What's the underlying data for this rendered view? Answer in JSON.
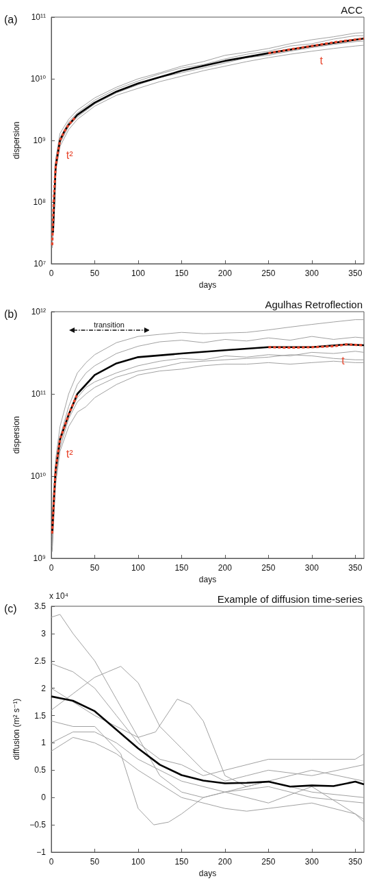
{
  "chart_data": [
    {
      "type": "line",
      "title": "ACC",
      "xlabel": "days",
      "ylabel": "dispersion",
      "log": "y",
      "grid": false,
      "marker": "none",
      "xlim": [
        0,
        360
      ],
      "xticks": [
        0,
        50,
        100,
        150,
        200,
        250,
        300,
        350
      ],
      "ylim": [
        10000000.0,
        100000000000.0
      ],
      "yticks": [
        {
          "value": 10000000.0,
          "label": "10⁷"
        },
        {
          "value": 100000000.0,
          "label": "10⁸"
        },
        {
          "value": 1000000000.0,
          "label": "10⁹"
        },
        {
          "value": 10000000000.0,
          "label": "10¹⁰"
        },
        {
          "value": 100000000000.0,
          "label": "10¹¹"
        }
      ],
      "annotations": [
        "(a)"
      ],
      "series": [
        {
          "color": "#a0a0a0",
          "x": [
            1,
            5,
            10,
            20,
            30,
            50,
            75,
            100,
            125,
            150,
            175,
            200,
            225,
            250,
            275,
            300,
            325,
            350,
            360
          ],
          "values": [
            25000000.0,
            500000000.0,
            1300000000.0,
            2200000000.0,
            3100000000.0,
            4900000000.0,
            7300000000.0,
            10000000000.0,
            12500000000.0,
            16000000000.0,
            19000000000.0,
            24000000000.0,
            27000000000.0,
            31000000000.0,
            37000000000.0,
            43000000000.0,
            48000000000.0,
            55000000000.0,
            56000000000.0
          ]
        },
        {
          "color": "#a0a0a0",
          "x": [
            1,
            5,
            10,
            20,
            30,
            50,
            75,
            100,
            125,
            150,
            175,
            200,
            225,
            250,
            275,
            300,
            325,
            350,
            360
          ],
          "values": [
            18000000.0,
            300000000.0,
            800000000.0,
            1500000000.0,
            2200000000.0,
            3600000000.0,
            5400000000.0,
            7000000000.0,
            9000000000.0,
            11000000000.0,
            13500000000.0,
            16000000000.0,
            19000000000.0,
            22000000000.0,
            25000000000.0,
            28000000000.0,
            31000000000.0,
            34000000000.0,
            35000000000.0
          ]
        },
        {
          "color": "#a0a0a0",
          "x": [
            1,
            5,
            10,
            20,
            30,
            50,
            75,
            100,
            125,
            150,
            175,
            200,
            225,
            250,
            275,
            300,
            325,
            350,
            360
          ],
          "values": [
            22000000.0,
            420000000.0,
            1100000000.0,
            2000000000.0,
            2800000000.0,
            4500000000.0,
            6800000000.0,
            9200000000.0,
            12000000000.0,
            15000000000.0,
            17000000000.0,
            21000000000.0,
            25000000000.0,
            28000000000.0,
            34000000000.0,
            37000000000.0,
            44000000000.0,
            50000000000.0,
            50000000000.0
          ]
        },
        {
          "color": "#a0a0a0",
          "x": [
            1,
            5,
            10,
            20,
            30,
            50,
            75,
            100,
            125,
            150,
            175,
            200,
            225,
            250,
            275,
            300,
            325,
            350,
            360
          ],
          "values": [
            20000000.0,
            350000000.0,
            900000000.0,
            1700000000.0,
            2400000000.0,
            3900000000.0,
            5900000000.0,
            8000000000.0,
            10500000000.0,
            12500000000.0,
            15000000000.0,
            18000000000.0,
            22000000000.0,
            24000000000.0,
            28000000000.0,
            32000000000.0,
            36000000000.0,
            40000000000.0,
            41000000000.0
          ]
        },
        {
          "color": "#000000",
          "x": [
            2,
            5,
            10,
            15,
            20,
            30,
            50,
            75,
            100,
            150,
            200,
            250,
            300,
            360
          ],
          "values": [
            32000000.0,
            380000000.0,
            1000000000.0,
            1400000000.0,
            1800000000.0,
            2600000000.0,
            4100000000.0,
            6200000000.0,
            8400000000.0,
            13500000000.0,
            19500000000.0,
            26000000000.0,
            34000000000.0,
            45000000000.0
          ]
        },
        {
          "name": "t²",
          "color": "#e8452c",
          "line_style": "dashed",
          "x": [
            1,
            3,
            5,
            10,
            15,
            20,
            28
          ],
          "values": [
            20000000.0,
            120000000.0,
            380000000.0,
            1000000000.0,
            1400000000.0,
            1800000000.0,
            2400000000.0
          ]
        },
        {
          "name": "t",
          "color": "#e8452c",
          "line_style": "dashed",
          "x": [
            250,
            275,
            300,
            325,
            360
          ],
          "values": [
            26000000000.0,
            30000000000.0,
            34000000000.0,
            39000000000.0,
            45000000000.0
          ]
        }
      ]
    },
    {
      "type": "line",
      "title": "Agulhas Retroflection",
      "xlabel": "days",
      "ylabel": "dispersion",
      "log": "y",
      "grid": false,
      "marker": "none",
      "xlim": [
        0,
        360
      ],
      "xticks": [
        0,
        50,
        100,
        150,
        200,
        250,
        300,
        350
      ],
      "ylim": [
        1000000000.0,
        1000000000000.0
      ],
      "yticks": [
        {
          "value": 1000000000.0,
          "label": "10⁹"
        },
        {
          "value": 10000000000.0,
          "label": "10¹⁰"
        },
        {
          "value": 100000000000.0,
          "label": "10¹¹"
        },
        {
          "value": 1000000000000.0,
          "label": "10¹²"
        }
      ],
      "annotations": [
        "(b)",
        "transition"
      ],
      "series": [
        {
          "color": "#a0a0a0",
          "x": [
            1,
            5,
            10,
            20,
            30,
            40,
            50,
            75,
            100,
            125,
            150,
            175,
            200,
            225,
            250,
            275,
            300,
            325,
            350,
            360
          ],
          "values": [
            1500000000.0,
            16000000000.0,
            40000000000.0,
            100000000000.0,
            180000000000.0,
            240000000000.0,
            300000000000.0,
            420000000000.0,
            500000000000.0,
            530000000000.0,
            560000000000.0,
            540000000000.0,
            550000000000.0,
            560000000000.0,
            600000000000.0,
            650000000000.0,
            700000000000.0,
            750000000000.0,
            800000000000.0,
            800000000000.0
          ]
        },
        {
          "color": "#a0a0a0",
          "x": [
            1,
            5,
            10,
            20,
            30,
            40,
            50,
            75,
            100,
            125,
            150,
            175,
            200,
            225,
            250,
            275,
            300,
            325,
            350,
            360
          ],
          "values": [
            1200000000.0,
            8000000000.0,
            20000000000.0,
            40000000000.0,
            60000000000.0,
            70000000000.0,
            90000000000.0,
            130000000000.0,
            170000000000.0,
            190000000000.0,
            200000000000.0,
            220000000000.0,
            230000000000.0,
            230000000000.0,
            240000000000.0,
            230000000000.0,
            240000000000.0,
            250000000000.0,
            240000000000.0,
            240000000000.0
          ]
        },
        {
          "color": "#a0a0a0",
          "x": [
            1,
            5,
            10,
            20,
            30,
            40,
            50,
            75,
            100,
            125,
            150,
            175,
            200,
            225,
            250,
            275,
            300,
            325,
            350,
            360
          ],
          "values": [
            1800000000.0,
            12000000000.0,
            30000000000.0,
            70000000000.0,
            130000000000.0,
            180000000000.0,
            220000000000.0,
            310000000000.0,
            380000000000.0,
            430000000000.0,
            450000000000.0,
            420000000000.0,
            460000000000.0,
            440000000000.0,
            480000000000.0,
            450000000000.0,
            500000000000.0,
            460000000000.0,
            490000000000.0,
            480000000000.0
          ]
        },
        {
          "color": "#a0a0a0",
          "x": [
            1,
            5,
            10,
            20,
            30,
            40,
            50,
            75,
            100,
            125,
            150,
            175,
            200,
            225,
            250,
            275,
            300,
            325,
            350,
            360
          ],
          "values": [
            1600000000.0,
            10000000000.0,
            25000000000.0,
            55000000000.0,
            90000000000.0,
            120000000000.0,
            140000000000.0,
            180000000000.0,
            220000000000.0,
            250000000000.0,
            270000000000.0,
            260000000000.0,
            290000000000.0,
            280000000000.0,
            300000000000.0,
            290000000000.0,
            320000000000.0,
            310000000000.0,
            330000000000.0,
            320000000000.0
          ]
        },
        {
          "color": "#a0a0a0",
          "x": [
            1,
            5,
            10,
            20,
            30,
            40,
            50,
            75,
            100,
            125,
            150,
            175,
            200,
            225,
            250,
            275,
            300,
            325,
            350,
            360
          ],
          "values": [
            1400000000.0,
            9000000000.0,
            22000000000.0,
            50000000000.0,
            80000000000.0,
            100000000000.0,
            120000000000.0,
            160000000000.0,
            190000000000.0,
            210000000000.0,
            240000000000.0,
            250000000000.0,
            260000000000.0,
            270000000000.0,
            280000000000.0,
            300000000000.0,
            290000000000.0,
            270000000000.0,
            260000000000.0,
            260000000000.0
          ]
        },
        {
          "color": "#000000",
          "x": [
            1,
            3,
            5,
            10,
            20,
            30,
            50,
            75,
            100,
            150,
            200,
            250,
            300,
            340,
            360
          ],
          "values": [
            2000000000.0,
            5400000000.0,
            12000000000.0,
            28000000000.0,
            56000000000.0,
            100000000000.0,
            170000000000.0,
            235000000000.0,
            280000000000.0,
            310000000000.0,
            340000000000.0,
            370000000000.0,
            370000000000.0,
            400000000000.0,
            390000000000.0
          ]
        },
        {
          "name": "t²",
          "color": "#e8452c",
          "line_style": "dashed",
          "x": [
            1,
            3,
            5,
            10,
            20,
            30
          ],
          "values": [
            2000000000.0,
            5400000000.0,
            12000000000.0,
            28000000000.0,
            56000000000.0,
            100000000000.0
          ]
        },
        {
          "name": "t",
          "color": "#e8452c",
          "line_style": "dashed",
          "x": [
            250,
            275,
            300,
            325,
            340,
            360
          ],
          "values": [
            370000000000.0,
            365000000000.0,
            370000000000.0,
            380000000000.0,
            400000000000.0,
            390000000000.0
          ]
        }
      ]
    },
    {
      "type": "line",
      "title": "Example of diffusion time-series",
      "xlabel": "days",
      "ylabel": "diffusion (m² s⁻¹)",
      "grid": false,
      "marker": "none",
      "xlim": [
        0,
        360
      ],
      "xticks": [
        0,
        50,
        100,
        150,
        200,
        250,
        300,
        350
      ],
      "ylim": [
        -1,
        3.5
      ],
      "yticks": [
        {
          "value": -1,
          "label": "−1"
        },
        {
          "value": -0.5,
          "label": "−0.5"
        },
        0,
        0.5,
        1,
        1.5,
        2,
        2.5,
        3,
        3.5
      ],
      "annotations": [
        "(c)",
        "x 10⁴"
      ],
      "series": [
        {
          "color": "#a0a0a0",
          "x": [
            0,
            10,
            25,
            50,
            75,
            100,
            125,
            150,
            175,
            200,
            250,
            300,
            360
          ],
          "values": [
            3.3,
            3.35,
            3.0,
            2.5,
            1.8,
            1.1,
            0.4,
            0.1,
            0.0,
            0.1,
            -0.1,
            0.2,
            -0.4
          ]
        },
        {
          "color": "#a0a0a0",
          "x": [
            0,
            25,
            50,
            65,
            80,
            100,
            125,
            150,
            175,
            200,
            225,
            250,
            300,
            360
          ],
          "values": [
            1.6,
            1.9,
            2.2,
            2.3,
            2.4,
            2.1,
            1.3,
            0.9,
            0.5,
            0.3,
            0.4,
            0.5,
            0.4,
            0.6
          ]
        },
        {
          "color": "#a0a0a0",
          "x": [
            0,
            50,
            100,
            120,
            145,
            160,
            175,
            200,
            225,
            250,
            300,
            360
          ],
          "values": [
            2.0,
            1.5,
            1.1,
            1.2,
            1.8,
            1.7,
            1.4,
            0.4,
            0.2,
            0.3,
            0.5,
            0.3
          ]
        },
        {
          "color": "#a0a0a0",
          "x": [
            0,
            25,
            50,
            80,
            100,
            118,
            135,
            150,
            175,
            200,
            250,
            300,
            360
          ],
          "values": [
            1.4,
            1.3,
            1.3,
            0.8,
            -0.2,
            -0.5,
            -0.45,
            -0.3,
            0.0,
            0.1,
            0.3,
            0.1,
            0.0
          ]
        },
        {
          "color": "#a0a0a0",
          "x": [
            0,
            25,
            50,
            75,
            100,
            125,
            150,
            175,
            200,
            250,
            300,
            350,
            360
          ],
          "values": [
            2.45,
            2.3,
            2.0,
            1.5,
            1.0,
            0.7,
            0.6,
            0.4,
            0.5,
            0.7,
            0.7,
            0.7,
            0.8
          ]
        },
        {
          "color": "#a0a0a0",
          "x": [
            0,
            25,
            50,
            75,
            100,
            150,
            200,
            225,
            250,
            300,
            350,
            360
          ],
          "values": [
            0.85,
            1.1,
            1.0,
            0.8,
            0.5,
            0.0,
            -0.2,
            -0.25,
            -0.2,
            -0.1,
            -0.3,
            -0.45
          ]
        },
        {
          "color": "#a0a0a0",
          "x": [
            0,
            25,
            50,
            75,
            100,
            150,
            200,
            250,
            300,
            360
          ],
          "values": [
            1.0,
            1.2,
            1.2,
            1.0,
            0.7,
            0.3,
            0.1,
            0.2,
            0.0,
            -0.1
          ]
        },
        {
          "color": "#000000",
          "x": [
            0,
            25,
            50,
            75,
            100,
            125,
            150,
            175,
            200,
            225,
            250,
            275,
            300,
            325,
            350,
            360
          ],
          "values": [
            1.85,
            1.77,
            1.58,
            1.24,
            0.9,
            0.6,
            0.41,
            0.31,
            0.26,
            0.27,
            0.29,
            0.2,
            0.22,
            0.21,
            0.29,
            0.24
          ]
        }
      ]
    }
  ]
}
